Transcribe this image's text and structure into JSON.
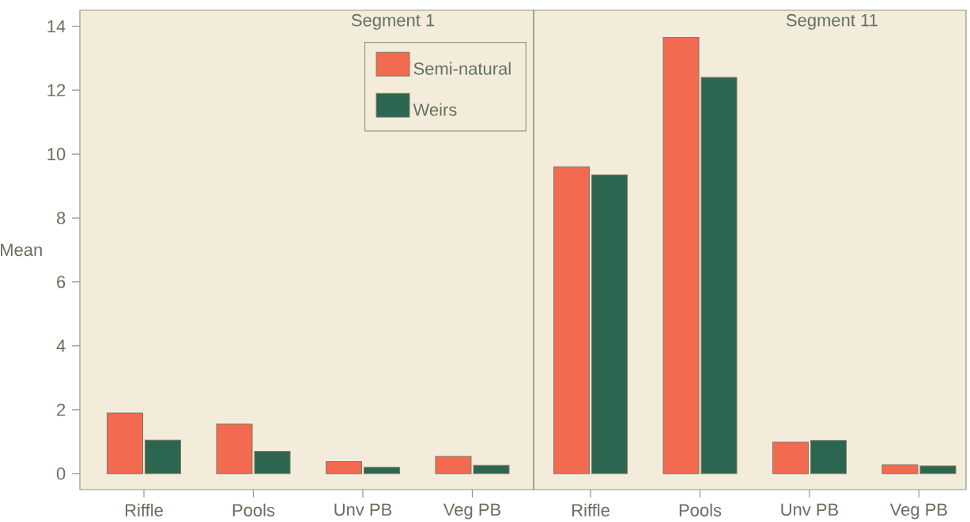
{
  "chart_data": [
    {
      "type": "bar",
      "title": "Segment 1",
      "ylabel": "Mean",
      "categories": [
        "Riffle",
        "Pools",
        "Unv PB",
        "Veg PB"
      ],
      "series": [
        {
          "name": "Semi-natural",
          "color": "#f26a4f",
          "values": [
            1.9,
            1.55,
            0.38,
            0.54
          ]
        },
        {
          "name": "Weirs",
          "color": "#2d6650",
          "values": [
            1.05,
            0.7,
            0.2,
            0.26
          ]
        }
      ],
      "ylim": [
        -0.5,
        14.5
      ],
      "yticks": [
        0,
        2,
        4,
        6,
        8,
        10,
        12,
        14
      ],
      "legend": "top right"
    },
    {
      "type": "bar",
      "title": "Segment 11",
      "categories": [
        "Riffle",
        "Pools",
        "Unv PB",
        "Veg PB"
      ],
      "series": [
        {
          "color": "#f26a4f",
          "values": [
            9.6,
            13.65,
            0.98,
            0.27
          ]
        },
        {
          "color": "#2d6650",
          "values": [
            9.35,
            12.4,
            1.04,
            0.24
          ]
        }
      ],
      "ylim": [
        -0.5,
        14.5
      ],
      "tick_labels": "x"
    }
  ]
}
